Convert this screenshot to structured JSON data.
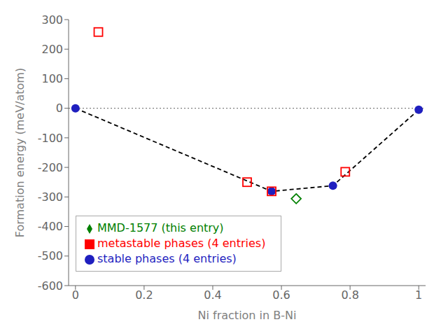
{
  "chart_data": {
    "type": "scatter",
    "xlabel": "Ni fraction in B-Ni",
    "ylabel": "Formation energy (meV/atom)",
    "xlim": [
      -0.02,
      1.02
    ],
    "ylim": [
      -600,
      300
    ],
    "xticks": [
      0.0,
      0.2,
      0.4,
      0.6,
      0.8,
      1.0
    ],
    "yticks": [
      -600,
      -500,
      -400,
      -300,
      -200,
      -100,
      0,
      100,
      200,
      300
    ],
    "grid": false,
    "legend": "lower left",
    "hlines": [
      {
        "y": 0,
        "color": "gray",
        "line_style": "dotted"
      }
    ],
    "series": [
      {
        "type": "line",
        "color": "black",
        "line_style": "dashed",
        "x": [
          0.0,
          0.5714,
          0.75,
          1.0
        ],
        "values": [
          0.0,
          -281.0,
          -262.0,
          -5.0
        ]
      },
      {
        "name": "stable phases (4 entries)",
        "type": "scatter",
        "color": "#1f1fbf",
        "marker": "circle",
        "x": [
          0.0,
          0.5714,
          0.75,
          1.0
        ],
        "values": [
          0.0,
          -281.0,
          -262.0,
          -5.0
        ]
      },
      {
        "name": "metastable phases (4 entries)",
        "type": "scatter",
        "color": "red",
        "marker": "open_square",
        "x": [
          0.0667,
          0.5,
          0.5714,
          0.786
        ],
        "values": [
          258.0,
          -250.0,
          -281.0,
          -215.0
        ]
      },
      {
        "name": "MMD-1577 (this entry)",
        "type": "scatter",
        "color": "green",
        "marker": "open_diamond",
        "x": [
          0.643
        ],
        "values": [
          -306.0
        ]
      }
    ]
  }
}
